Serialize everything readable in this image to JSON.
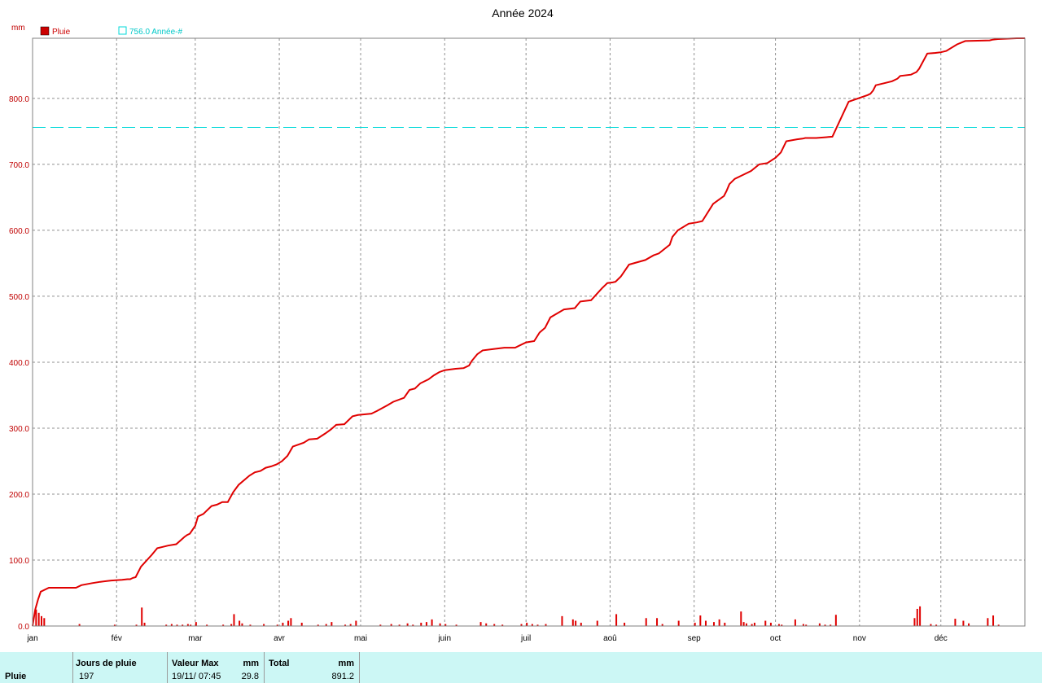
{
  "chart_data": {
    "type": "line",
    "title": "Année 2024",
    "ylabel": "mm",
    "ylim": [
      0,
      891.2
    ],
    "yticks": [
      "0.0",
      "100.0",
      "200.0",
      "300.0",
      "400.0",
      "500.0",
      "600.0",
      "700.0",
      "800.0"
    ],
    "ytick_values": [
      0,
      100,
      200,
      300,
      400,
      500,
      600,
      700,
      800
    ],
    "xlim": [
      0,
      366
    ],
    "xtick_labels": [
      "jan",
      "fév",
      "mar",
      "avr",
      "mai",
      "juin",
      "juil",
      "aoû",
      "sep",
      "oct",
      "nov",
      "déc"
    ],
    "xtick_days": [
      0,
      31,
      60,
      91,
      121,
      152,
      182,
      213,
      244,
      274,
      305,
      335
    ],
    "grid": true,
    "legend": [
      {
        "label": "Pluie",
        "color": "#cc0000",
        "style": "filled-square"
      },
      {
        "label": "756.0 Année-#",
        "color": "#00d8d8",
        "style": "open-square"
      }
    ],
    "reference_line": {
      "value": 756.0,
      "color": "#00d8d8",
      "style": "dashed"
    },
    "series": [
      {
        "name": "Pluie",
        "color": "#e00000",
        "kind": "cumulative-line",
        "x": [
          0,
          1,
          2,
          3,
          6,
          10,
          16,
          18,
          22,
          25,
          29,
          33,
          35,
          36,
          37,
          38,
          40,
          44,
          46,
          48,
          50,
          53,
          56,
          57,
          58,
          60,
          61,
          63,
          66,
          68,
          70,
          72,
          74,
          76,
          80,
          82,
          84,
          86,
          88,
          90,
          92,
          94,
          96,
          100,
          102,
          105,
          108,
          110,
          112,
          115,
          118,
          120,
          125,
          127,
          131,
          133,
          137,
          139,
          141,
          143,
          146,
          148,
          150,
          152,
          156,
          159,
          161,
          162,
          164,
          166,
          170,
          174,
          178,
          182,
          185,
          187,
          189,
          191,
          196,
          200,
          202,
          206,
          210,
          212,
          214,
          215,
          217,
          220,
          226,
          229,
          231,
          235,
          236,
          238,
          242,
          245,
          247,
          251,
          255,
          256,
          257,
          259,
          262,
          265,
          268,
          271,
          274,
          276,
          278,
          282,
          284,
          285,
          287,
          289,
          292,
          295,
          301,
          308,
          309,
          310,
          311,
          314,
          317,
          319,
          320,
          324,
          326,
          327,
          330,
          333,
          335,
          337,
          341,
          344,
          353,
          354,
          356,
          363,
          366
        ],
        "y": [
          0,
          25,
          40,
          52,
          58,
          58,
          58,
          62,
          65,
          67,
          69,
          70,
          71,
          71,
          73,
          74,
          90,
          108,
          118,
          120,
          122,
          124,
          135,
          138,
          140,
          152,
          166,
          170,
          182,
          184,
          188,
          188,
          203,
          214,
          228,
          233,
          235,
          240,
          242,
          245,
          250,
          258,
          272,
          278,
          283,
          284,
          292,
          298,
          305,
          306,
          318,
          320,
          322,
          326,
          335,
          340,
          346,
          358,
          360,
          368,
          374,
          380,
          385,
          388,
          390,
          391,
          395,
          402,
          412,
          418,
          420,
          422,
          422,
          430,
          432,
          445,
          452,
          468,
          480,
          482,
          492,
          494,
          512,
          520,
          521,
          522,
          530,
          548,
          555,
          562,
          565,
          578,
          590,
          600,
          610,
          612,
          614,
          640,
          652,
          660,
          670,
          678,
          684,
          690,
          700,
          702,
          710,
          718,
          735,
          738,
          739,
          740,
          740,
          740,
          741,
          742,
          795,
          805,
          807,
          812,
          820,
          823,
          826,
          830,
          834,
          836,
          840,
          845,
          868,
          869,
          870,
          872,
          882,
          887,
          888,
          889,
          890,
          891.2,
          891.2
        ]
      },
      {
        "name": "Pluie",
        "color": "#e00000",
        "kind": "daily-bars",
        "x": [
          1,
          2,
          3,
          4,
          17,
          30,
          38,
          40,
          41,
          49,
          51,
          53,
          55,
          57,
          58,
          60,
          64,
          70,
          73,
          74,
          76,
          77,
          80,
          85,
          90,
          92,
          94,
          95,
          99,
          105,
          108,
          110,
          115,
          117,
          119,
          128,
          132,
          135,
          138,
          140,
          143,
          145,
          147,
          150,
          152,
          156,
          165,
          167,
          170,
          173,
          180,
          182,
          184,
          186,
          189,
          195,
          199,
          200,
          202,
          208,
          215,
          218,
          226,
          230,
          232,
          238,
          244,
          246,
          248,
          251,
          253,
          255,
          261,
          262,
          263,
          265,
          266,
          270,
          272,
          275,
          276,
          281,
          284,
          285,
          290,
          292,
          294,
          296,
          325,
          326,
          327,
          331,
          333,
          340,
          343,
          345,
          352,
          354,
          356
        ],
        "y": [
          25,
          20,
          15,
          12,
          3,
          2,
          2,
          28,
          5,
          2,
          3,
          2,
          2,
          3,
          2,
          6,
          2,
          2,
          3,
          18,
          8,
          4,
          2,
          3,
          2,
          5,
          8,
          12,
          5,
          2,
          3,
          6,
          2,
          3,
          8,
          2,
          3,
          2,
          4,
          2,
          5,
          6,
          10,
          4,
          3,
          2,
          6,
          4,
          3,
          2,
          3,
          5,
          3,
          2,
          3,
          15,
          10,
          8,
          5,
          8,
          18,
          5,
          12,
          12,
          3,
          8,
          5,
          16,
          8,
          6,
          10,
          5,
          22,
          6,
          4,
          3,
          5,
          8,
          5,
          3,
          2,
          10,
          3,
          2,
          4,
          2,
          2,
          17,
          12,
          26,
          29.8,
          3,
          2,
          11,
          8,
          4,
          12,
          16,
          2
        ]
      }
    ]
  },
  "footer": {
    "row_label": "Pluie",
    "col1_header": "Jours de pluie",
    "col1_value": "197",
    "col2_header": "Valeur Max",
    "col2_unit": "mm",
    "col2_date": "19/11/  07:45",
    "col2_value": "29.8",
    "col3_header": "Total",
    "col3_unit": "mm",
    "col3_value": "891.2"
  }
}
